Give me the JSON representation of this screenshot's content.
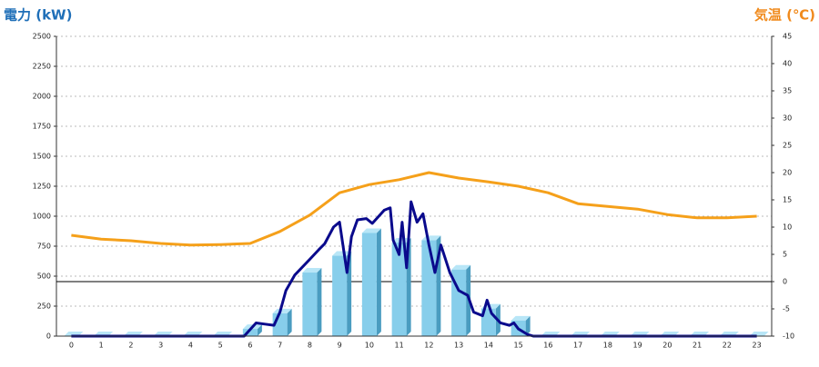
{
  "chart_data": {
    "type": "combo",
    "y_label": "電力 (kW)",
    "y2_label": "気温 (℃)",
    "y_label_color": "#1f6fb8",
    "y2_label_color": "#f08a1c",
    "categories": [
      "0",
      "1",
      "2",
      "3",
      "4",
      "5",
      "6",
      "7",
      "8",
      "9",
      "10",
      "11",
      "12",
      "13",
      "14",
      "15",
      "16",
      "17",
      "18",
      "19",
      "20",
      "21",
      "22",
      "23"
    ],
    "ylim": [
      0,
      2500
    ],
    "yticks": [
      0,
      250,
      500,
      750,
      1000,
      1250,
      1500,
      1750,
      2000,
      2250,
      2500
    ],
    "y2lim": [
      -10,
      45
    ],
    "y2ticks": [
      -10,
      -5,
      0,
      5,
      10,
      15,
      20,
      25,
      30,
      35,
      40,
      45
    ],
    "grid": true,
    "series": [
      {
        "type": "bar",
        "color": "#87ceeb",
        "values": [
          0,
          0,
          0,
          0,
          0,
          0,
          60,
          190,
          530,
          670,
          860,
          780,
          800,
          555,
          230,
          130,
          0,
          0,
          0,
          0,
          0,
          0,
          0,
          0
        ]
      },
      {
        "type": "line",
        "color": "#0a0a8c",
        "x": [
          0,
          1,
          2,
          3,
          4,
          5,
          5.8,
          6.2,
          6.5,
          6.8,
          7.0,
          7.2,
          7.5,
          8.0,
          8.3,
          8.5,
          8.8,
          9.0,
          9.25,
          9.4,
          9.6,
          9.9,
          10.1,
          10.5,
          10.7,
          10.8,
          11.0,
          11.1,
          11.25,
          11.4,
          11.6,
          11.8,
          12.0,
          12.2,
          12.4,
          12.7,
          13.0,
          13.3,
          13.5,
          13.8,
          13.95,
          14.1,
          14.4,
          14.7,
          14.85,
          15.0,
          15.3,
          15.5,
          16,
          17,
          18,
          19,
          20,
          21,
          22,
          23
        ],
        "values": [
          0,
          0,
          0,
          0,
          0,
          0,
          0,
          110,
          100,
          90,
          200,
          380,
          510,
          640,
          720,
          770,
          910,
          950,
          530,
          830,
          970,
          980,
          940,
          1050,
          1070,
          800,
          680,
          950,
          570,
          1120,
          950,
          1020,
          760,
          530,
          760,
          530,
          380,
          340,
          200,
          170,
          300,
          190,
          110,
          90,
          110,
          60,
          15,
          0,
          0,
          0,
          0,
          0,
          0,
          0,
          0,
          0
        ]
      },
      {
        "type": "line",
        "axis": "y2",
        "color": "#f5a01a",
        "values": [
          8.5,
          7.8,
          7.5,
          7.0,
          6.7,
          6.8,
          7.0,
          9.2,
          12.2,
          16.3,
          17.8,
          18.7,
          20.0,
          19.0,
          18.3,
          17.5,
          16.3,
          14.3,
          13.8,
          13.3,
          12.3,
          11.7,
          11.7,
          12.0
        ]
      }
    ]
  }
}
